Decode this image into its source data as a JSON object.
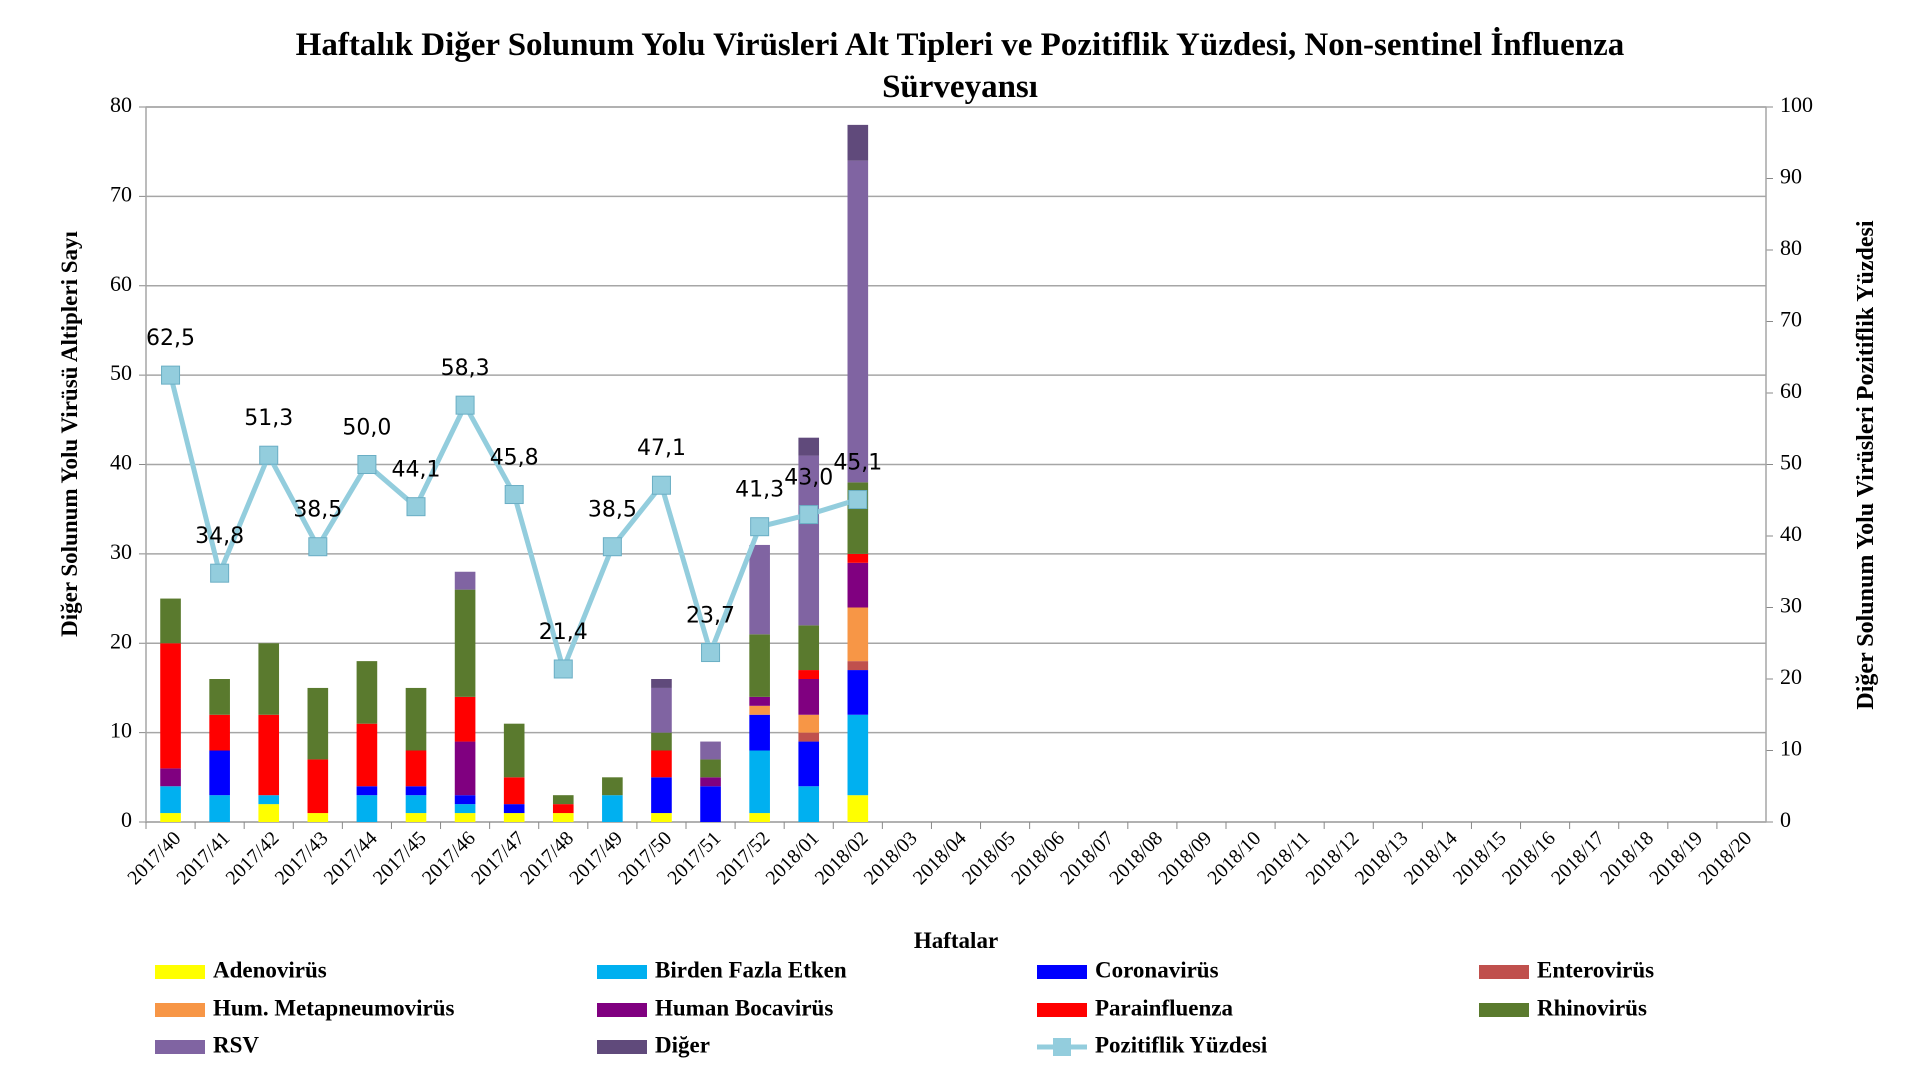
{
  "chart_data": {
    "type": "bar",
    "stacked": true,
    "title": "Haftalık Diğer Solunum Yolu Virüsleri Alt Tipleri ve Pozitiflik Yüzdesi, Non-sentinel İnfluenza Sürveyansı",
    "x_label": "Haftalar",
    "y_label": "Diğer Solunum Yolu Virüsü Altipleri Sayı",
    "y2_label": "Diğer Solunum Yolu Virüsleri Pozitiflik Yüzdesi",
    "categories": [
      "2017/40",
      "2017/41",
      "2017/42",
      "2017/43",
      "2017/44",
      "2017/45",
      "2017/46",
      "2017/47",
      "2017/48",
      "2017/49",
      "2017/50",
      "2017/51",
      "2017/52",
      "2018/01",
      "2018/02",
      "2018/03",
      "2018/04",
      "2018/05",
      "2018/06",
      "2018/07",
      "2018/08",
      "2018/09",
      "2018/10",
      "2018/11",
      "2018/12",
      "2018/13",
      "2018/14",
      "2018/15",
      "2018/16",
      "2018/17",
      "2018/18",
      "2018/19",
      "2018/20"
    ],
    "series": [
      {
        "name": "Adenovirüs",
        "color": "#ffff00",
        "values": [
          1,
          0,
          2,
          1,
          0,
          1,
          1,
          1,
          1,
          0,
          1,
          0,
          1,
          0,
          3,
          null,
          null,
          null,
          null,
          null,
          null,
          null,
          null,
          null,
          null,
          null,
          null,
          null,
          null,
          null,
          null,
          null,
          null
        ]
      },
      {
        "name": "Birden Fazla Etken",
        "color": "#00b0f0",
        "values": [
          3,
          3,
          1,
          0,
          3,
          2,
          1,
          0,
          0,
          3,
          0,
          0,
          7,
          4,
          9,
          null,
          null,
          null,
          null,
          null,
          null,
          null,
          null,
          null,
          null,
          null,
          null,
          null,
          null,
          null,
          null,
          null,
          null
        ]
      },
      {
        "name": "Coronavirüs",
        "color": "#0000ff",
        "values": [
          0,
          5,
          0,
          0,
          1,
          1,
          1,
          1,
          0,
          0,
          4,
          4,
          4,
          5,
          5,
          null,
          null,
          null,
          null,
          null,
          null,
          null,
          null,
          null,
          null,
          null,
          null,
          null,
          null,
          null,
          null,
          null,
          null
        ]
      },
      {
        "name": "Enterovirüs",
        "color": "#c0504d",
        "values": [
          0,
          0,
          0,
          0,
          0,
          0,
          0,
          0,
          0,
          0,
          0,
          0,
          0,
          1,
          1,
          null,
          null,
          null,
          null,
          null,
          null,
          null,
          null,
          null,
          null,
          null,
          null,
          null,
          null,
          null,
          null,
          null,
          null
        ]
      },
      {
        "name": "Hum. Metapneumovirüs",
        "color": "#f79646",
        "values": [
          0,
          0,
          0,
          0,
          0,
          0,
          0,
          0,
          0,
          0,
          0,
          0,
          1,
          2,
          6,
          null,
          null,
          null,
          null,
          null,
          null,
          null,
          null,
          null,
          null,
          null,
          null,
          null,
          null,
          null,
          null,
          null,
          null
        ]
      },
      {
        "name": "Human Bocavirüs",
        "color": "#800080",
        "values": [
          2,
          0,
          0,
          0,
          0,
          0,
          6,
          0,
          0,
          0,
          0,
          1,
          1,
          4,
          5,
          null,
          null,
          null,
          null,
          null,
          null,
          null,
          null,
          null,
          null,
          null,
          null,
          null,
          null,
          null,
          null,
          null,
          null
        ]
      },
      {
        "name": "Parainfluenza",
        "color": "#ff0000",
        "values": [
          14,
          4,
          9,
          6,
          7,
          4,
          5,
          3,
          1,
          0,
          3,
          0,
          0,
          1,
          1,
          null,
          null,
          null,
          null,
          null,
          null,
          null,
          null,
          null,
          null,
          null,
          null,
          null,
          null,
          null,
          null,
          null,
          null
        ]
      },
      {
        "name": "Rhinovirüs",
        "color": "#5a7a2e",
        "values": [
          5,
          4,
          8,
          8,
          7,
          7,
          12,
          6,
          1,
          2,
          2,
          2,
          7,
          5,
          8,
          null,
          null,
          null,
          null,
          null,
          null,
          null,
          null,
          null,
          null,
          null,
          null,
          null,
          null,
          null,
          null,
          null,
          null
        ]
      },
      {
        "name": "RSV",
        "color": "#8064a2",
        "values": [
          0,
          0,
          0,
          0,
          0,
          0,
          2,
          0,
          0,
          0,
          5,
          2,
          10,
          19,
          36,
          null,
          null,
          null,
          null,
          null,
          null,
          null,
          null,
          null,
          null,
          null,
          null,
          null,
          null,
          null,
          null,
          null,
          null
        ]
      },
      {
        "name": "Diğer",
        "color": "#604a7b",
        "values": [
          0,
          0,
          0,
          0,
          0,
          0,
          0,
          0,
          0,
          0,
          1,
          0,
          0,
          2,
          4,
          null,
          null,
          null,
          null,
          null,
          null,
          null,
          null,
          null,
          null,
          null,
          null,
          null,
          null,
          null,
          null,
          null,
          null
        ]
      },
      {
        "name": "Pozitiflik Yüzdesi",
        "color": "#93cddd",
        "type": "line",
        "axis": "y2",
        "values": [
          62.5,
          34.8,
          51.3,
          38.5,
          50.0,
          44.1,
          58.3,
          45.8,
          21.4,
          38.5,
          47.1,
          23.7,
          41.3,
          43.0,
          45.1,
          null,
          null,
          null,
          null,
          null,
          null,
          null,
          null,
          null,
          null,
          null,
          null,
          null,
          null,
          null,
          null,
          null,
          null
        ],
        "value_labels": [
          "62,5",
          "34,8",
          "51,3",
          "38,5",
          "50,0",
          "44,1",
          "58,3",
          "45,8",
          "21,4",
          "38,5",
          "47,1",
          "23,7",
          "41,3",
          "43,0",
          "45,1",
          null,
          null,
          null,
          null,
          null,
          null,
          null,
          null,
          null,
          null,
          null,
          null,
          null,
          null,
          null,
          null,
          null,
          null
        ]
      }
    ],
    "ylim": [
      0,
      80
    ],
    "yticks": [
      0,
      10,
      20,
      30,
      40,
      50,
      60,
      70,
      80
    ],
    "y2lim": [
      0,
      100
    ],
    "y2ticks": [
      0,
      10,
      20,
      30,
      40,
      50,
      60,
      70,
      80,
      90,
      100
    ],
    "grid": true,
    "legend": "bottom"
  }
}
